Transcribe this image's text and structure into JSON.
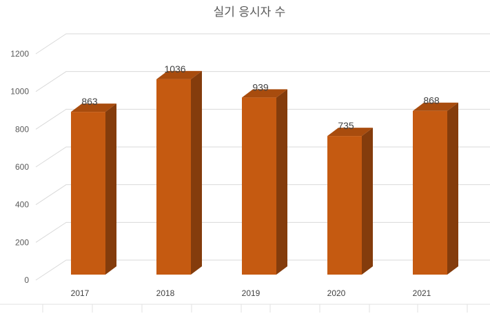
{
  "chart_data": {
    "type": "bar",
    "title": "실기 응시자 수",
    "categories": [
      "2017",
      "2018",
      "2019",
      "2020",
      "2021"
    ],
    "values": [
      863,
      1036,
      939,
      735,
      868
    ],
    "data_labels": [
      "863",
      "1036",
      "939",
      "735",
      "868"
    ],
    "yticks": [
      "0",
      "200",
      "400",
      "600",
      "800",
      "1000",
      "1200"
    ],
    "ylim": [
      0,
      1200
    ],
    "grid": true,
    "style": "3d-column",
    "colors": {
      "front": "#c55a11",
      "side": "#843c0c",
      "top": "#a84c0e"
    }
  }
}
